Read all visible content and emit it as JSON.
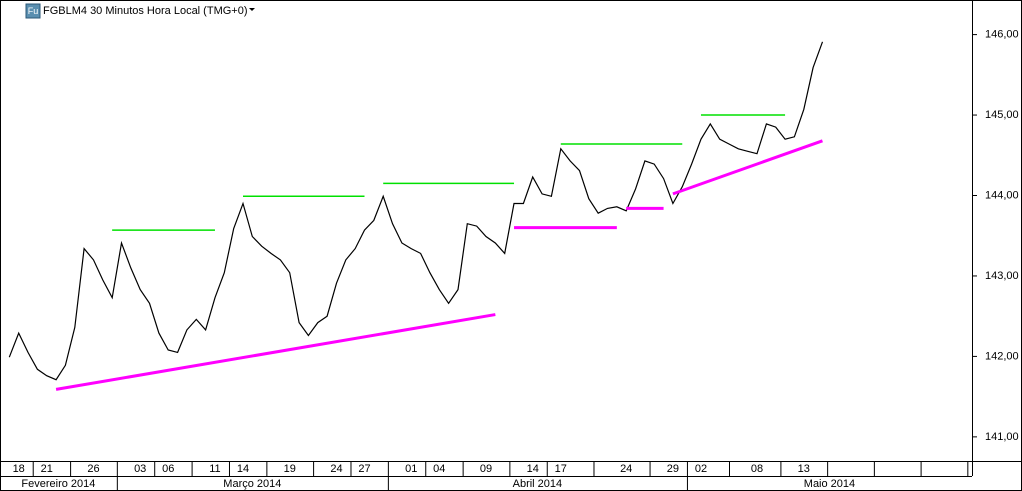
{
  "chart_data": {
    "type": "line",
    "title": "FGBLM4 30 Minutos Hora Local (TMG+0)",
    "icon": "Fu",
    "x": [
      "2014-02-17",
      "2014-02-18",
      "2014-02-19",
      "2014-02-20",
      "2014-02-21",
      "2014-02-22",
      "2014-02-23",
      "2014-02-24",
      "2014-02-25",
      "2014-02-26",
      "2014-02-27",
      "2014-02-28",
      "2014-03-01",
      "2014-03-02",
      "2014-03-03",
      "2014-03-04",
      "2014-03-05",
      "2014-03-06",
      "2014-03-07",
      "2014-03-08",
      "2014-03-09",
      "2014-03-10",
      "2014-03-11",
      "2014-03-12",
      "2014-03-13",
      "2014-03-14",
      "2014-03-15",
      "2014-03-16",
      "2014-03-17",
      "2014-03-18",
      "2014-03-19",
      "2014-03-20",
      "2014-03-21",
      "2014-03-22",
      "2014-03-23",
      "2014-03-24",
      "2014-03-25",
      "2014-03-26",
      "2014-03-27",
      "2014-03-28",
      "2014-03-29",
      "2014-03-30",
      "2014-03-31",
      "2014-04-01",
      "2014-04-02",
      "2014-04-03",
      "2014-04-04",
      "2014-04-05",
      "2014-04-06",
      "2014-04-07",
      "2014-04-08",
      "2014-04-09",
      "2014-04-10",
      "2014-04-11",
      "2014-04-12",
      "2014-04-13",
      "2014-04-14",
      "2014-04-15",
      "2014-04-16",
      "2014-04-17",
      "2014-04-18",
      "2014-04-19",
      "2014-04-20",
      "2014-04-21",
      "2014-04-22",
      "2014-04-23",
      "2014-04-24",
      "2014-04-25",
      "2014-04-26",
      "2014-04-27",
      "2014-04-28",
      "2014-04-29",
      "2014-04-30",
      "2014-05-01",
      "2014-05-02",
      "2014-05-03",
      "2014-05-04",
      "2014-05-05",
      "2014-05-06",
      "2014-05-07",
      "2014-05-08",
      "2014-05-09",
      "2014-05-10",
      "2014-05-11",
      "2014-05-12",
      "2014-05-13",
      "2014-05-14",
      "2014-05-15"
    ],
    "series": [
      {
        "name": "FGBLM4",
        "color": "#000000",
        "values": [
          141.99,
          142.29,
          142.05,
          141.84,
          141.76,
          141.71,
          141.89,
          142.36,
          143.34,
          143.2,
          142.95,
          142.73,
          143.41,
          143.1,
          142.83,
          142.66,
          142.29,
          142.08,
          142.05,
          142.33,
          142.46,
          142.33,
          142.73,
          143.04,
          143.59,
          143.9,
          143.49,
          143.37,
          143.28,
          143.2,
          143.04,
          142.42,
          142.26,
          142.42,
          142.5,
          142.91,
          143.2,
          143.34,
          143.57,
          143.69,
          143.99,
          143.65,
          143.41,
          143.34,
          143.28,
          143.04,
          142.83,
          142.66,
          142.83,
          143.65,
          143.62,
          143.49,
          143.41,
          143.28,
          143.9,
          143.9,
          144.23,
          144.02,
          143.99,
          144.58,
          144.43,
          144.31,
          143.96,
          143.78,
          143.84,
          143.86,
          143.81,
          144.08,
          144.43,
          144.39,
          144.21,
          143.9,
          144.11,
          144.39,
          144.7,
          144.89,
          144.7,
          144.64,
          144.58,
          144.55,
          144.52,
          144.89,
          144.85,
          144.7,
          144.73,
          145.07,
          145.59,
          145.91
        ]
      }
    ],
    "annotations": [
      {
        "color": "#00e000",
        "x": [
          "2014-02-28",
          "2014-03-11"
        ],
        "y": [
          143.57,
          143.57
        ]
      },
      {
        "color": "#00e000",
        "x": [
          "2014-03-14",
          "2014-03-27"
        ],
        "y": [
          143.99,
          143.99
        ]
      },
      {
        "color": "#00e000",
        "x": [
          "2014-03-29",
          "2014-04-12"
        ],
        "y": [
          144.15,
          144.15
        ]
      },
      {
        "color": "#00e000",
        "x": [
          "2014-04-17",
          "2014-04-30"
        ],
        "y": [
          144.64,
          144.64
        ]
      },
      {
        "color": "#00e000",
        "x": [
          "2014-05-02",
          "2014-05-11"
        ],
        "y": [
          145.0,
          145.0
        ]
      },
      {
        "color": "#ff00ff",
        "x": [
          "2014-02-22",
          "2014-04-10"
        ],
        "y": [
          141.59,
          142.52
        ]
      },
      {
        "color": "#ff00ff",
        "x": [
          "2014-04-12",
          "2014-04-23"
        ],
        "y": [
          143.6,
          143.6
        ]
      },
      {
        "color": "#ff00ff",
        "x": [
          "2014-04-24",
          "2014-04-28"
        ],
        "y": [
          143.84,
          143.84
        ]
      },
      {
        "color": "#ff00ff",
        "x": [
          "2014-04-29",
          "2014-05-15"
        ],
        "y": [
          144.02,
          144.68
        ]
      }
    ],
    "xlim": [
      "2014-02-16",
      "2014-05-31"
    ],
    "xticks": [
      {
        "value": "2014-02-18",
        "label": "18"
      },
      {
        "value": "2014-02-21",
        "label": "21"
      },
      {
        "value": "2014-02-26",
        "label": "26"
      },
      {
        "value": "2014-03-03",
        "label": "03"
      },
      {
        "value": "2014-03-06",
        "label": "06"
      },
      {
        "value": "2014-03-11",
        "label": "11"
      },
      {
        "value": "2014-03-14",
        "label": "14"
      },
      {
        "value": "2014-03-19",
        "label": "19"
      },
      {
        "value": "2014-03-24",
        "label": "24"
      },
      {
        "value": "2014-03-27",
        "label": "27"
      },
      {
        "value": "2014-04-01",
        "label": "01"
      },
      {
        "value": "2014-04-04",
        "label": "04"
      },
      {
        "value": "2014-04-09",
        "label": "09"
      },
      {
        "value": "2014-04-14",
        "label": "14"
      },
      {
        "value": "2014-04-17",
        "label": "17"
      },
      {
        "value": "2014-04-24",
        "label": "24"
      },
      {
        "value": "2014-04-29",
        "label": "29"
      },
      {
        "value": "2014-05-02",
        "label": "02"
      },
      {
        "value": "2014-05-08",
        "label": "08"
      },
      {
        "value": "2014-05-13",
        "label": "13"
      }
    ],
    "months": [
      "Fevereiro 2014",
      "Março 2014",
      "Abril 2014",
      "Maio 2014"
    ],
    "ylim": [
      140.7,
      146.43
    ],
    "yticks": [
      {
        "value": 141,
        "label": "141,00"
      },
      {
        "value": 142,
        "label": "142,00"
      },
      {
        "value": 143,
        "label": "143,00"
      },
      {
        "value": 144,
        "label": "144,00"
      },
      {
        "value": 145,
        "label": "145,00"
      },
      {
        "value": 146,
        "label": "146,00"
      }
    ]
  }
}
